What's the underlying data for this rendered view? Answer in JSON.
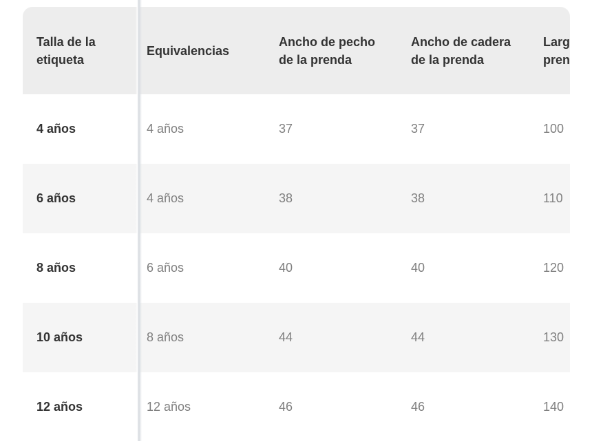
{
  "colors": {
    "header_bg": "#ededed",
    "stripe_bg": "#f5f5f5",
    "text_primary": "#333333",
    "text_secondary": "#7f7f7f",
    "divider": "#dbdfe3",
    "page_bg": "#ffffff"
  },
  "table": {
    "columns": [
      {
        "id": "label",
        "lines": [
          "Talla de la",
          "etiqueta"
        ]
      },
      {
        "id": "equivalencia",
        "lines": [
          "Equivalencias"
        ]
      },
      {
        "id": "pecho",
        "lines": [
          "Ancho de pecho",
          "de la prenda"
        ]
      },
      {
        "id": "cadera",
        "lines": [
          "Ancho de cadera",
          "de la prenda"
        ]
      },
      {
        "id": "largo",
        "lines": [
          "Largo de la",
          "prenda"
        ]
      }
    ],
    "rows": [
      {
        "label": "4 años",
        "equivalencia": "4 años",
        "pecho": "37",
        "cadera": "37",
        "largo": "100"
      },
      {
        "label": "6 años",
        "equivalencia": "4 años",
        "pecho": "38",
        "cadera": "38",
        "largo": "110"
      },
      {
        "label": "8 años",
        "equivalencia": "6 años",
        "pecho": "40",
        "cadera": "40",
        "largo": "120"
      },
      {
        "label": "10 años",
        "equivalencia": "8 años",
        "pecho": "44",
        "cadera": "44",
        "largo": "130"
      },
      {
        "label": "12 años",
        "equivalencia": "12 años",
        "pecho": "46",
        "cadera": "46",
        "largo": "140"
      }
    ]
  }
}
